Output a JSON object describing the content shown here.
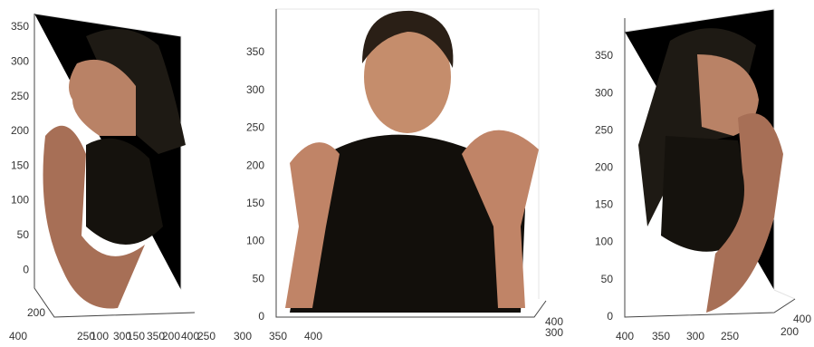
{
  "panels": [
    {
      "y_ticks": [
        350,
        300,
        250,
        200,
        150,
        100,
        50,
        0
      ],
      "x_ticks": [
        250,
        300,
        350,
        400
      ],
      "depth_ticks": [
        200,
        400
      ]
    },
    {
      "y_ticks": [
        350,
        300,
        250,
        200,
        150,
        100,
        50,
        0
      ],
      "x_ticks": [
        100,
        150,
        200,
        250,
        300,
        350,
        400
      ],
      "depth_ticks": [
        400,
        300
      ]
    },
    {
      "y_ticks": [
        350,
        300,
        250,
        200,
        150,
        100,
        50,
        0
      ],
      "x_ticks": [
        400,
        350,
        300,
        250
      ],
      "depth_ticks": [
        400,
        200
      ]
    }
  ]
}
